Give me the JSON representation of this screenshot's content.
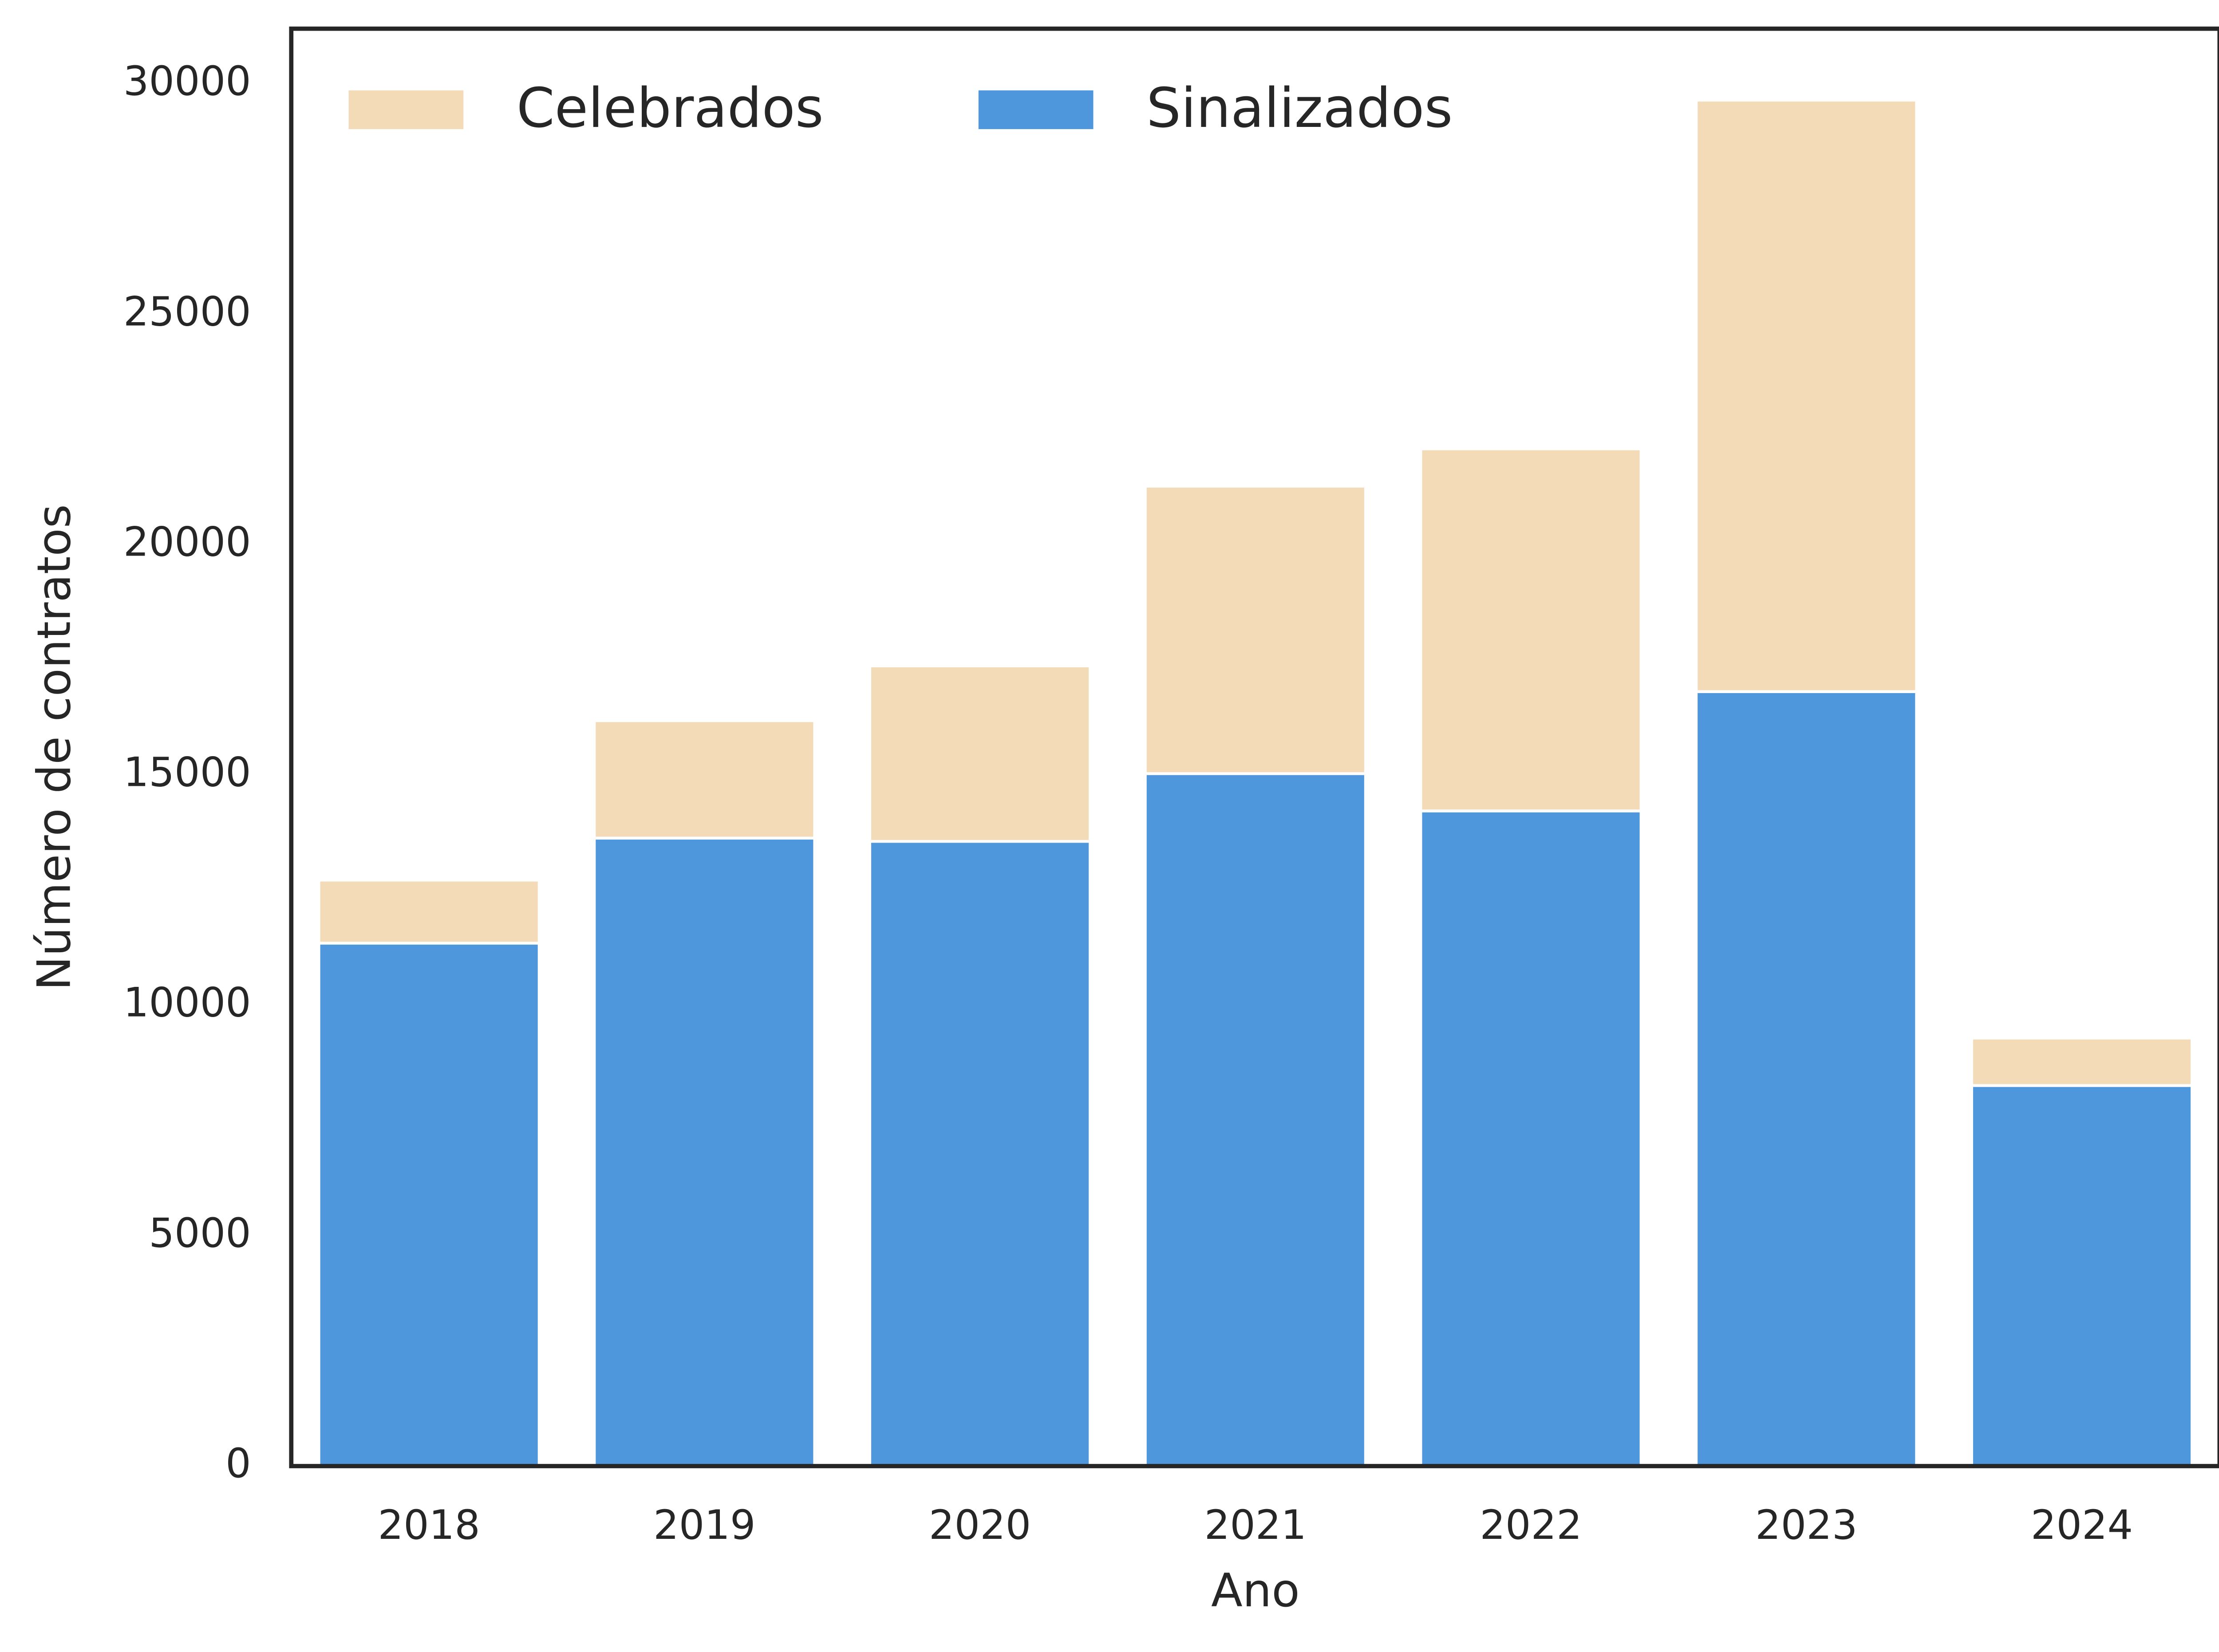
{
  "chart_data": {
    "type": "bar",
    "x_label": "Ano",
    "y_label": "Número de contratos",
    "categories": [
      "2018",
      "2019",
      "2020",
      "2021",
      "2022",
      "2023",
      "2024"
    ],
    "series": [
      {
        "name": "Celebrados",
        "color": "#f4dbb7",
        "values": [
          12720,
          16180,
          17370,
          21270,
          22080,
          29650,
          9290
        ]
      },
      {
        "name": "Sinalizados",
        "color": "#4e97dd",
        "values": [
          11350,
          13630,
          13560,
          15030,
          14220,
          16810,
          8260
        ]
      }
    ],
    "ylim": [
      0,
      31200
    ],
    "yticks": [
      0,
      5000,
      10000,
      15000,
      20000,
      25000,
      30000
    ],
    "grid": false,
    "legend": "upper left"
  }
}
